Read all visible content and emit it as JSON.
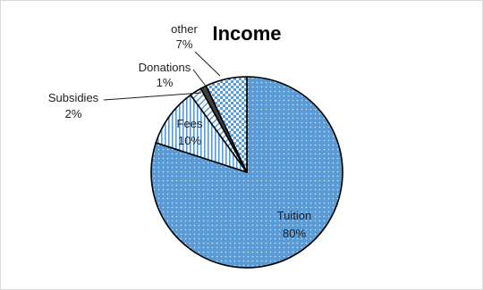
{
  "chart_data": {
    "type": "pie",
    "title": "Income",
    "slices": [
      {
        "label": "Tuition",
        "value": 80,
        "display": "80%",
        "color": "#5b9bd5",
        "pattern": "dots"
      },
      {
        "label": "Fees",
        "value": 10,
        "display": "10%",
        "color": "#5b9bd5",
        "pattern": "vertical-lines"
      },
      {
        "label": "Subsidies",
        "value": 2,
        "display": "2%",
        "color": "#5b9bd5",
        "pattern": "diagonal-lines"
      },
      {
        "label": "Donations",
        "value": 1,
        "display": "1%",
        "color": "#404040",
        "pattern": "solid"
      },
      {
        "label": "other",
        "value": 7,
        "display": "7%",
        "color": "#5b9bd5",
        "pattern": "checkerboard"
      }
    ],
    "start_angle_deg": 0,
    "direction": "clockwise",
    "legend": "none",
    "outline_color": "#000000"
  }
}
